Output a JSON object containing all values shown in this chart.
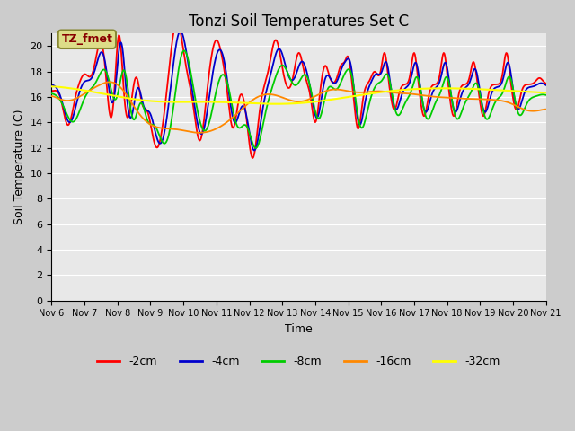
{
  "title": "Tonzi Soil Temperatures Set C",
  "xlabel": "Time",
  "ylabel": "Soil Temperature (C)",
  "ylim": [
    0,
    21
  ],
  "yticks": [
    0,
    2,
    4,
    6,
    8,
    10,
    12,
    14,
    16,
    18,
    20
  ],
  "x_labels": [
    "Nov 6",
    "Nov 7",
    "Nov 8",
    "Nov 9",
    "Nov 10",
    "Nov 11",
    "Nov 12",
    "Nov 13",
    "Nov 14",
    "Nov 15",
    "Nov 16",
    "Nov 17",
    "Nov 18",
    "Nov 19",
    "Nov 20",
    "Nov 21"
  ],
  "legend_labels": [
    "-2cm",
    "-4cm",
    "-8cm",
    "-16cm",
    "-32cm"
  ],
  "legend_colors": [
    "#ff0000",
    "#0000cc",
    "#00cc00",
    "#ff8800",
    "#ffff00"
  ],
  "annotation_text": "TZ_fmet",
  "annotation_color": "#880000",
  "annotation_bg": "#dddd88",
  "plot_bg": "#e8e8e8",
  "grid_color": "#ffffff",
  "figsize": [
    6.4,
    4.8
  ],
  "dpi": 100
}
